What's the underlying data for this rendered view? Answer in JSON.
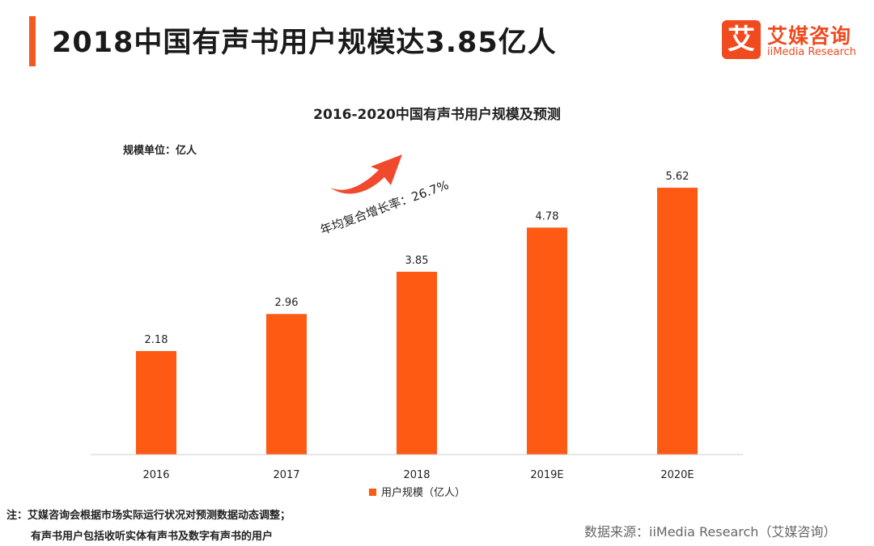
{
  "header": {
    "title": "2018中国有声书用户规模达3.85亿人"
  },
  "logo": {
    "mark": "艾",
    "name_cn": "艾媒咨询",
    "name_en": "iiMedia Research"
  },
  "unit_label": "规模单位：亿人",
  "growth_annotation": "年均复合增长率：26.7%",
  "notes": {
    "line1": "注：艾媒咨询会根据市场实际运行状况对预测数据动态调整；",
    "line2": "有声书用户包括收听实体有声书及数字有声书的用户"
  },
  "source": "数据来源：iiMedia Research（艾媒咨询）",
  "colors": {
    "accent": "#f25a20",
    "bar": "#fe5a14",
    "arrow": "#f0492d"
  },
  "chart_data": {
    "type": "bar",
    "title": "2016-2020中国有声书用户规模及预测",
    "categories": [
      "2016",
      "2017",
      "2018",
      "2019E",
      "2020E"
    ],
    "series": [
      {
        "name": "用户规模（亿人）",
        "values": [
          2.18,
          2.96,
          3.85,
          4.78,
          5.62
        ]
      }
    ],
    "ylim": [
      0,
      6.2
    ],
    "legend": "bottom-center",
    "grid": false
  }
}
